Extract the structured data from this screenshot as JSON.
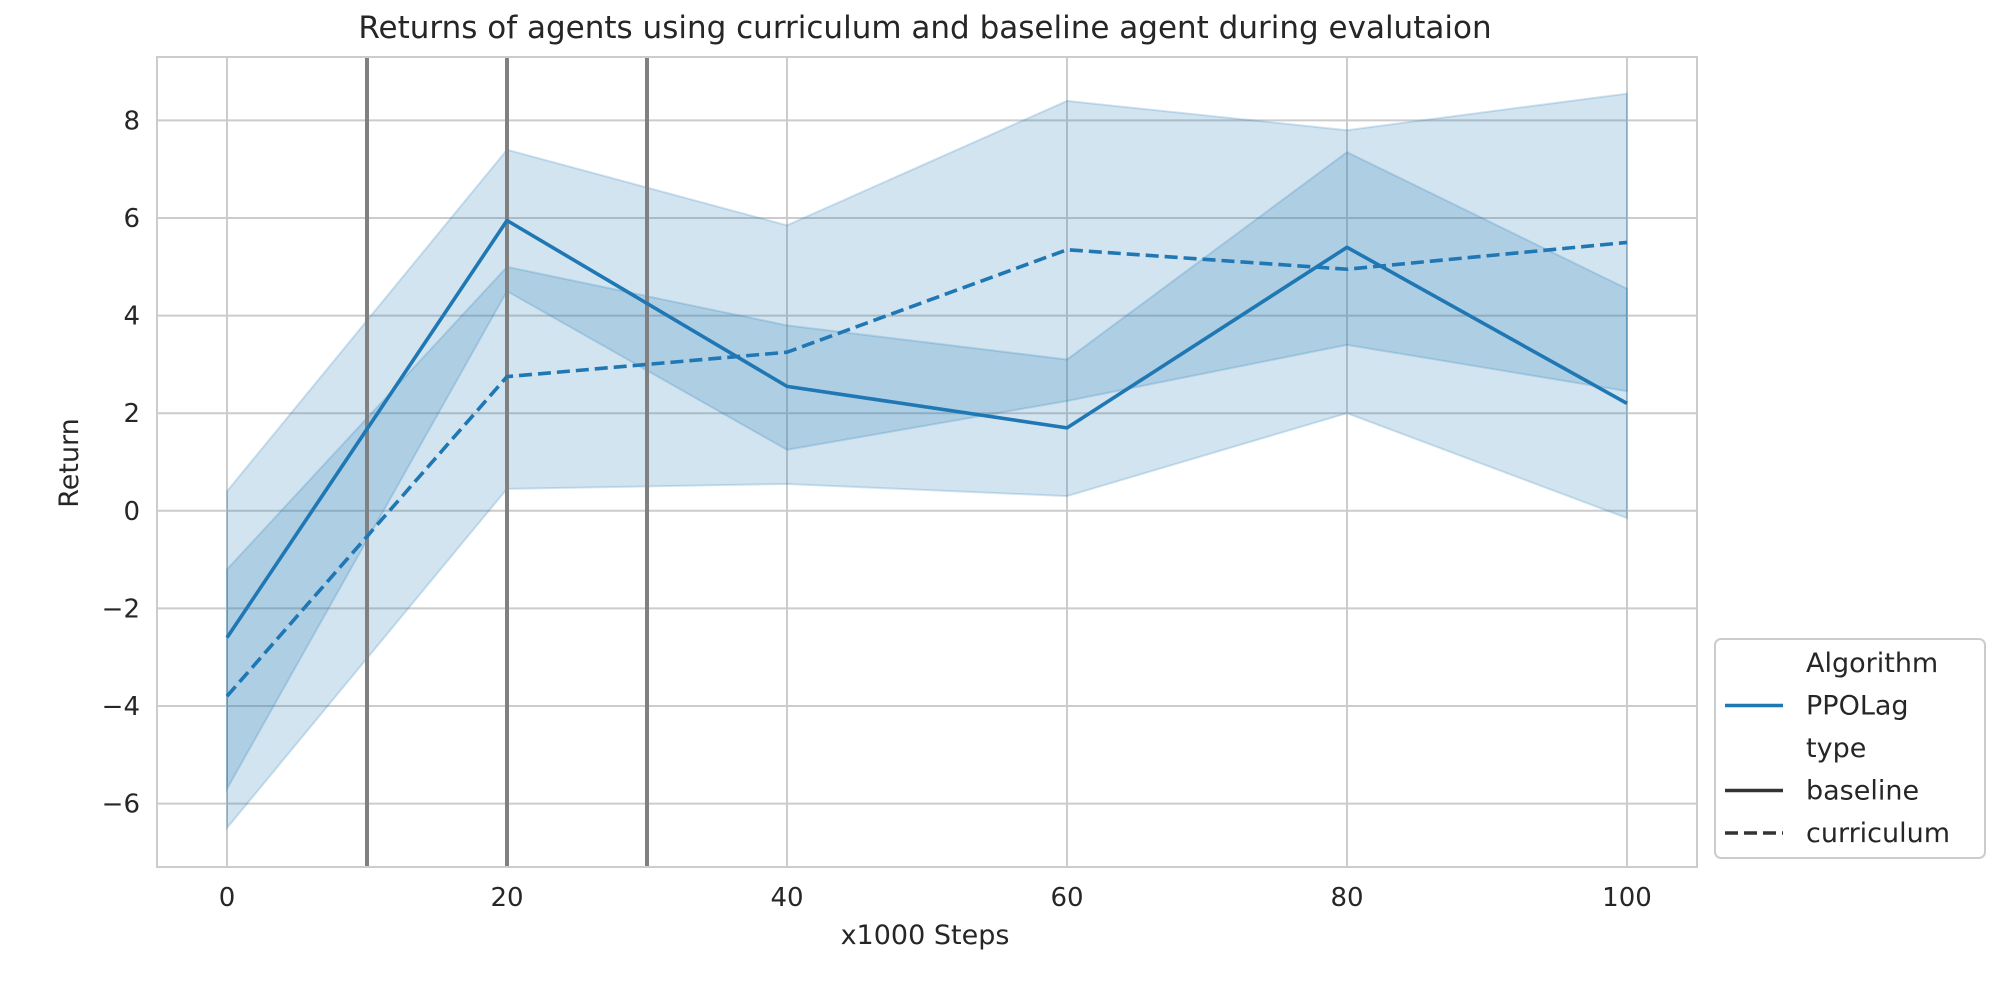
{
  "chart_data": {
    "type": "line",
    "title": "Returns of agents using curriculum and baseline agent during evalutaion",
    "xlabel": "x1000 Steps",
    "ylabel": "Return",
    "xlim": [
      -5,
      105
    ],
    "ylim": [
      -7.3,
      9.3
    ],
    "xticks": [
      0,
      20,
      40,
      60,
      80,
      100
    ],
    "yticks": [
      -6,
      -4,
      -2,
      0,
      2,
      4,
      6,
      8
    ],
    "ytick_labels": [
      "−6",
      "−4",
      "−2",
      "0",
      "2",
      "4",
      "6",
      "8"
    ],
    "grid": true,
    "vlines": [
      10,
      20,
      30
    ],
    "series": [
      {
        "key": "baseline",
        "algorithm": "PPOLag",
        "type": "baseline",
        "dash": "solid",
        "x": [
          0,
          20,
          40,
          60,
          80,
          100
        ],
        "y": [
          -2.6,
          5.95,
          2.55,
          1.7,
          5.4,
          2.2
        ],
        "ci_lower": [
          -5.7,
          4.5,
          1.25,
          2.25,
          3.4,
          2.45
        ],
        "ci_upper": [
          -1.2,
          5.0,
          3.8,
          3.1,
          7.35,
          4.55
        ]
      },
      {
        "key": "curriculum",
        "algorithm": "PPOLag",
        "type": "curriculum",
        "dash": "dashed",
        "x": [
          0,
          20,
          40,
          60,
          80,
          100
        ],
        "y": [
          -3.8,
          2.75,
          3.25,
          5.35,
          4.95,
          5.5
        ],
        "ci_lower": [
          -6.5,
          0.45,
          0.55,
          0.3,
          2.0,
          -0.15
        ],
        "ci_upper": [
          0.4,
          7.4,
          5.85,
          8.4,
          7.8,
          8.55
        ]
      }
    ],
    "legend": {
      "placement": "lower-right-outside",
      "entries": [
        {
          "label": "Algorithm",
          "kind": "header"
        },
        {
          "label": "PPOLag",
          "kind": "line",
          "color": "#1f77b4",
          "dash": "solid"
        },
        {
          "label": "type",
          "kind": "header"
        },
        {
          "label": "baseline",
          "kind": "line",
          "color": "#333333",
          "dash": "solid"
        },
        {
          "label": "curriculum",
          "kind": "line",
          "color": "#333333",
          "dash": "dashed"
        }
      ]
    },
    "colors": {
      "series": "#1f77b4",
      "band": "#1f77b4",
      "vline": "#808080"
    }
  }
}
